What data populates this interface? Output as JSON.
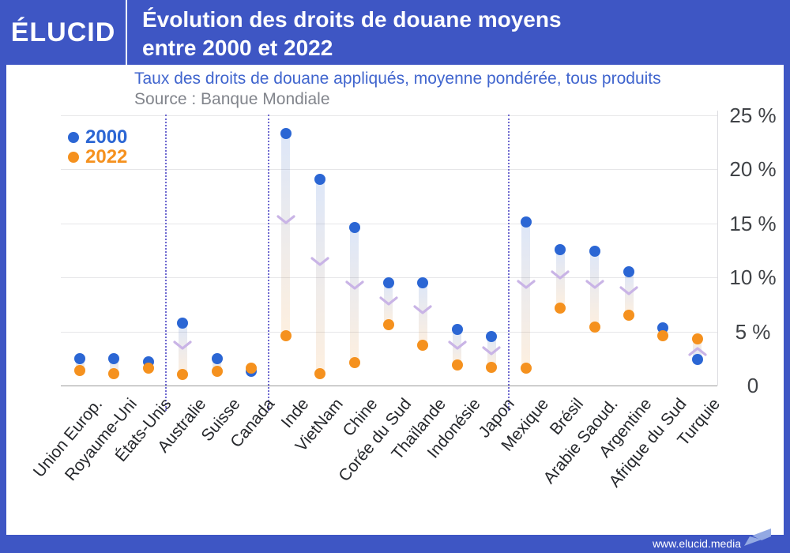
{
  "header": {
    "logo": "ÉLUCID",
    "title_line1": "Évolution des droits de douane moyens",
    "title_line2": "entre 2000 et 2022"
  },
  "subtitle": "Taux des droits de douane appliqués, moyenne pondérée, tous produits",
  "source": "Source : Banque Mondiale",
  "footer": {
    "url": "www.elucid.media"
  },
  "colors": {
    "header_bg": "#3e56c4",
    "accent_blue": "#2b66d4",
    "accent_orange": "#f5911e",
    "subtitle_blue": "#4065ce",
    "source_gray": "#82858c",
    "separator_purple": "#6f6ad0",
    "arrow_lavender": "#c9b4e6",
    "grid_gray": "#e6e6e8",
    "axis_gray": "#9b9b9b",
    "flag_icon_blue": "#93a9e3"
  },
  "chart_data": {
    "type": "dumbbell",
    "title": "Évolution des droits de douane moyens entre 2000 et 2022",
    "subtitle": "Taux des droits de douane appliqués, moyenne pondérée, tous produits",
    "source": "Source : Banque Mondiale",
    "unit": "%",
    "ylim": [
      0,
      25
    ],
    "grid": "horizontal",
    "legend_position": "top-left",
    "yticks": [
      {
        "value": 25,
        "label": "25 %"
      },
      {
        "value": 20,
        "label": "20 %"
      },
      {
        "value": 15,
        "label": "15 %"
      },
      {
        "value": 10,
        "label": "10 %"
      },
      {
        "value": 5,
        "label": "5 %"
      },
      {
        "value": 0,
        "label": "0"
      }
    ],
    "categories": [
      "Union Europ.",
      "Royaume-Uni",
      "États-Unis",
      "Australie",
      "Suisse",
      "Canada",
      "Inde",
      "VietNam",
      "Chine",
      "Corée du Sud",
      "Thaïlande",
      "Indonésie",
      "Japon",
      "Mexique",
      "Brésil",
      "Arabie Saoud.",
      "Argentine",
      "Afrique du Sud",
      "Turquie"
    ],
    "series": [
      {
        "name": "2000",
        "color": "#2b66d4",
        "values": [
          2.5,
          2.5,
          2.2,
          5.8,
          2.5,
          1.3,
          23.3,
          19.1,
          14.6,
          9.5,
          9.5,
          5.2,
          4.5,
          15.1,
          12.6,
          12.4,
          10.5,
          5.3,
          2.4
        ]
      },
      {
        "name": "2022",
        "color": "#f5911e",
        "values": [
          1.4,
          1.1,
          1.6,
          1.0,
          1.3,
          1.6,
          4.6,
          1.1,
          2.1,
          5.6,
          3.7,
          1.9,
          1.7,
          1.6,
          7.2,
          5.4,
          6.5,
          4.6,
          4.3
        ]
      }
    ],
    "group_separators_after_index": [
      2,
      5,
      12
    ],
    "change_arrows": true
  }
}
